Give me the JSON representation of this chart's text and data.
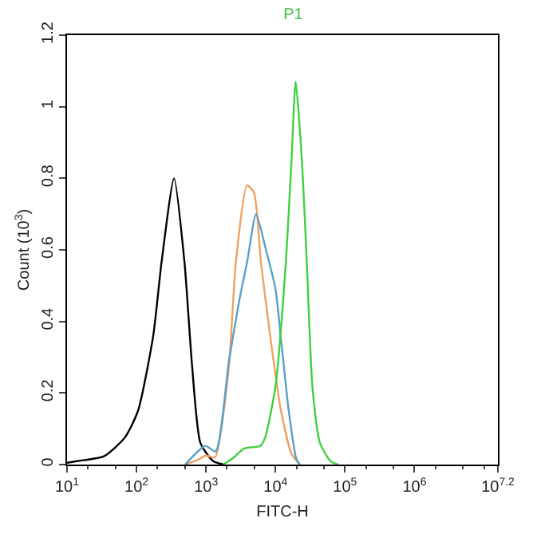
{
  "chart_data": {
    "type": "line",
    "title": "P1",
    "xlabel": "FITC-H",
    "ylabel": "Count (10$^{3}$)",
    "log": "x",
    "grid": false,
    "marker": "none",
    "line_style": "solid",
    "xlim": [
      10,
      15848932
    ],
    "xticks": [
      {
        "value": 10,
        "label": "10$^{1}$"
      },
      {
        "value": 100,
        "label": "10$^{2}$"
      },
      {
        "value": 1000,
        "label": "10$^{3}$"
      },
      {
        "value": 10000,
        "label": "10$^{4}$"
      },
      {
        "value": 100000,
        "label": "10$^{5}$"
      },
      {
        "value": 1000000,
        "label": "10$^{6}$"
      },
      {
        "value": 15848932,
        "label": "10$^{7.2}$"
      }
    ],
    "ylim": [
      0,
      1.2
    ],
    "yticks": [
      0,
      0.2,
      0.4,
      0.6,
      0.8,
      1,
      1.2
    ],
    "series": [
      {
        "color": "#000000",
        "x": [
          10,
          14.5,
          33.9,
          67.6,
          105,
          174,
          229,
          347,
          490,
          631,
          832,
          1260,
          1780
        ],
        "values": [
          0.005,
          0.01,
          0.023,
          0.075,
          0.15,
          0.36,
          0.565,
          0.8,
          0.565,
          0.275,
          0.06,
          0.01,
          0
        ]
      },
      {
        "color": "#f0a060",
        "x": [
          501,
          794,
          1000,
          1350,
          1660,
          2140,
          2690,
          3890,
          4900,
          6170,
          8510,
          12000,
          17000,
          22400
        ],
        "values": [
          0,
          0.015,
          0.025,
          0.02,
          0.1,
          0.275,
          0.565,
          0.78,
          0.76,
          0.565,
          0.35,
          0.15,
          0.03,
          0
        ]
      },
      {
        "color": "#5aa0c8",
        "x": [
          501,
          977,
          1380,
          2140,
          3020,
          3890,
          5250,
          7080,
          10000,
          12000,
          15500,
          20000,
          22400
        ],
        "values": [
          0,
          0.052,
          0.037,
          0.29,
          0.46,
          0.565,
          0.7,
          0.61,
          0.49,
          0.35,
          0.15,
          0.015,
          0
        ]
      },
      {
        "color": "#40d040",
        "x": [
          1780,
          2510,
          3550,
          6030,
          7080,
          10000,
          14100,
          17000,
          19500,
          24000,
          28200,
          33900,
          43700,
          61700,
          79400
        ],
        "values": [
          0,
          0.02,
          0.045,
          0.052,
          0.075,
          0.22,
          0.565,
          0.85,
          1.07,
          0.85,
          0.565,
          0.22,
          0.06,
          0.01,
          0
        ]
      }
    ]
  }
}
